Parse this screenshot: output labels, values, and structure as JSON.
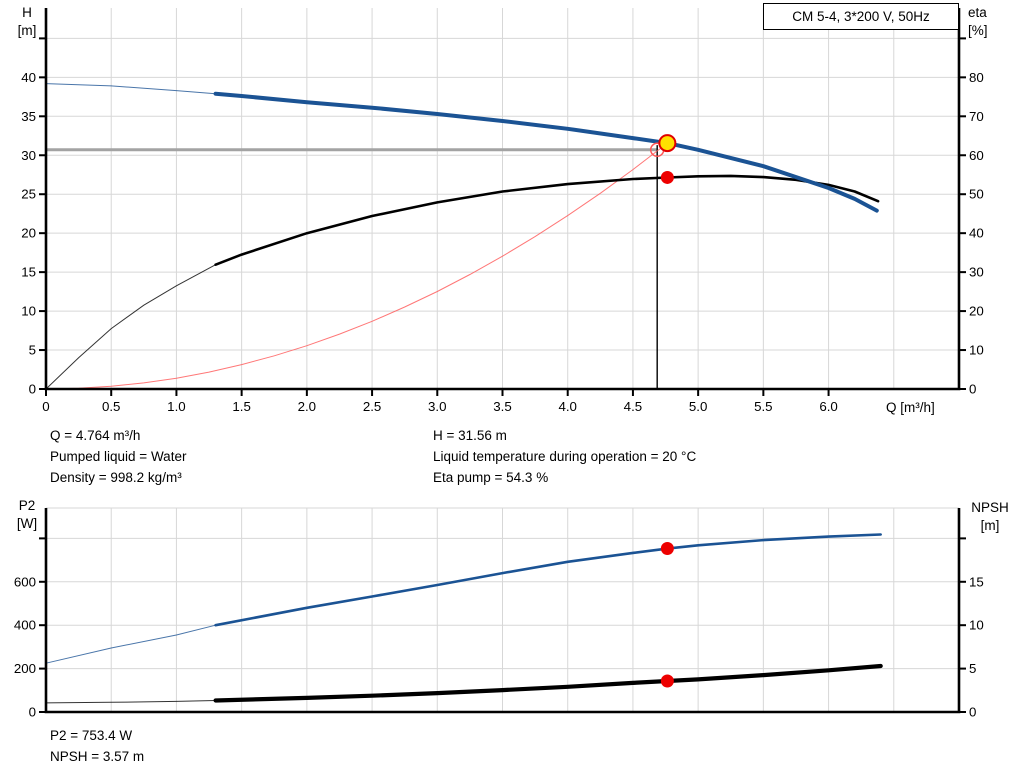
{
  "title_box": {
    "label": "CM 5-4, 3*200 V, 50Hz"
  },
  "colors": {
    "curve_blue": "#1B5394",
    "curve_black": "#000000",
    "curve_red": "#FF5555",
    "dot_red": "#ED0000",
    "dot_yellow": "#FFE000",
    "dot_yellow_ring": "#E00000",
    "grid": "#D7D7D7",
    "axis": "#000000",
    "duty_h_line": "#A3A3A3",
    "duty_v_line": "#000000"
  },
  "annotations": {
    "q": "Q = 4.764 m³/h",
    "pumped_liquid": "Pumped liquid = Water",
    "density": "Density = 998.2 kg/m³",
    "h": "H = 31.56 m",
    "temperature": "Liquid temperature during operation = 20 °C",
    "eta_pump": "Eta pump = 54.3 %",
    "p2": "P2 = 753.4 W",
    "npsh": "NPSH = 3.57 m"
  },
  "chart_data": [
    {
      "id": "head-chart",
      "type": "line",
      "x_axis": {
        "label": "Q [m³/h]",
        "min": 0,
        "max": 7,
        "tick_step": 0.5,
        "labeled_max": 6,
        "grid_max": 6.5
      },
      "left_axis": {
        "label": "H",
        "unit": "[m]",
        "min": 0,
        "max": 48.9,
        "ticks": [
          0,
          5,
          10,
          15,
          20,
          25,
          30,
          35,
          40
        ],
        "unlabeled_ticks": [
          45
        ]
      },
      "right_axis": {
        "label": "eta",
        "unit": "[%]",
        "min": 0,
        "max": 97.8,
        "ticks": [
          0,
          10,
          20,
          30,
          40,
          50,
          60,
          70,
          80
        ],
        "unlabeled_ticks": [
          90
        ]
      },
      "duty_lines": {
        "vertical": {
          "q": 4.686,
          "from_value": 0,
          "to_value": 31.3,
          "axis": "left"
        },
        "horizontal": {
          "value": 30.7,
          "from_q": 0,
          "to_q": 4.686,
          "axis": "left"
        }
      },
      "series": [
        {
          "name": "system-curve",
          "axis": "left",
          "color": "#FF5555",
          "thin_until": 99,
          "width": 1.2,
          "points": [
            [
              0,
              0
            ],
            [
              0.25,
              0.09
            ],
            [
              0.5,
              0.35
            ],
            [
              0.75,
              0.78
            ],
            [
              1,
              1.39
            ],
            [
              1.25,
              2.17
            ],
            [
              1.5,
              3.13
            ],
            [
              1.75,
              4.26
            ],
            [
              2,
              5.56
            ],
            [
              2.25,
              7.04
            ],
            [
              2.5,
              8.69
            ],
            [
              2.75,
              10.52
            ],
            [
              3,
              12.52
            ],
            [
              3.25,
              14.69
            ],
            [
              3.5,
              17.04
            ],
            [
              3.75,
              19.56
            ],
            [
              4,
              22.25
            ],
            [
              4.25,
              25.12
            ],
            [
              4.5,
              28.16
            ],
            [
              4.764,
              31.56
            ]
          ]
        },
        {
          "name": "efficiency-curve",
          "axis": "right",
          "color": "#000000",
          "thin_until": 1.3,
          "width": 2.6,
          "points": [
            [
              0,
              0
            ],
            [
              0.25,
              8
            ],
            [
              0.5,
              15.5
            ],
            [
              0.75,
              21.5
            ],
            [
              1,
              26.5
            ],
            [
              1.3,
              31.9
            ],
            [
              1.5,
              34.5
            ],
            [
              2,
              40
            ],
            [
              2.5,
              44.4
            ],
            [
              3,
              47.9
            ],
            [
              3.5,
              50.7
            ],
            [
              4,
              52.6
            ],
            [
              4.5,
              53.9
            ],
            [
              4.764,
              54.3
            ],
            [
              5,
              54.6
            ],
            [
              5.25,
              54.7
            ],
            [
              5.5,
              54.4
            ],
            [
              5.75,
              53.7
            ],
            [
              6,
              52.4
            ],
            [
              6.2,
              50.7
            ],
            [
              6.38,
              48.2
            ]
          ]
        },
        {
          "name": "pump-head-curve",
          "axis": "left",
          "color": "#1B5394",
          "thin_until": 1.3,
          "width": 4,
          "points": [
            [
              0,
              39.2
            ],
            [
              0.5,
              38.9
            ],
            [
              1,
              38.3
            ],
            [
              1.3,
              37.9
            ],
            [
              1.5,
              37.6
            ],
            [
              2,
              36.8
            ],
            [
              2.5,
              36.1
            ],
            [
              3,
              35.3
            ],
            [
              3.5,
              34.4
            ],
            [
              4,
              33.4
            ],
            [
              4.5,
              32.2
            ],
            [
              4.764,
              31.56
            ],
            [
              5,
              30.7
            ],
            [
              5.5,
              28.6
            ],
            [
              6,
              25.8
            ],
            [
              6.2,
              24.4
            ],
            [
              6.37,
              22.9
            ]
          ]
        }
      ],
      "markers": [
        {
          "name": "requested-point-ring",
          "q": 4.686,
          "value": 30.7,
          "axis": "left",
          "r": 6.5,
          "fill": "none",
          "stroke": "#FF5555",
          "stroke_width": 1.5
        },
        {
          "name": "duty-point-marker",
          "q": 4.764,
          "value": 31.56,
          "axis": "left",
          "r": 8,
          "fill": "#FFE000",
          "stroke": "#E00000",
          "stroke_width": 2
        },
        {
          "name": "eta-point-marker",
          "q": 4.764,
          "value": 54.3,
          "axis": "right",
          "r": 6.5,
          "fill": "#ED0000",
          "stroke": "none",
          "stroke_width": 0
        }
      ]
    },
    {
      "id": "power-npsh-chart",
      "type": "line",
      "x_axis": {
        "label": "",
        "min": 0,
        "max": 7,
        "tick_step": 0.5,
        "labeled_max": -1,
        "grid_max": 6.5
      },
      "left_axis": {
        "label": "P2",
        "unit": "[W]",
        "min": 0,
        "max": 940,
        "ticks": [
          0,
          200,
          400,
          600
        ],
        "unlabeled_ticks": [
          800
        ]
      },
      "right_axis": {
        "label": "NPSH",
        "unit": "[m]",
        "min": 0,
        "max": 23.5,
        "ticks": [
          0,
          5,
          10,
          15
        ],
        "unlabeled_ticks": [
          20
        ]
      },
      "series": [
        {
          "name": "power-curve",
          "axis": "left",
          "color": "#1B5394",
          "thin_until": 1.3,
          "width": 2.6,
          "points": [
            [
              0,
              225
            ],
            [
              0.5,
              295
            ],
            [
              1,
              355
            ],
            [
              1.3,
              400
            ],
            [
              2,
              480
            ],
            [
              2.5,
              532
            ],
            [
              3,
              585
            ],
            [
              3.5,
              640
            ],
            [
              4,
              692
            ],
            [
              4.5,
              733
            ],
            [
              4.764,
              753
            ],
            [
              5,
              768
            ],
            [
              5.5,
              792
            ],
            [
              6,
              808
            ],
            [
              6.4,
              818
            ]
          ]
        },
        {
          "name": "npsh-curve",
          "axis": "right",
          "color": "#000000",
          "thin_until": 1.3,
          "width": 4.2,
          "points": [
            [
              0,
              1.05
            ],
            [
              0.5,
              1.12
            ],
            [
              1,
              1.22
            ],
            [
              1.3,
              1.33
            ],
            [
              2,
              1.63
            ],
            [
              2.5,
              1.88
            ],
            [
              3,
              2.18
            ],
            [
              3.5,
              2.52
            ],
            [
              4,
              2.9
            ],
            [
              4.5,
              3.35
            ],
            [
              4.764,
              3.57
            ],
            [
              5,
              3.75
            ],
            [
              5.5,
              4.25
            ],
            [
              6,
              4.8
            ],
            [
              6.4,
              5.3
            ]
          ]
        }
      ],
      "markers": [
        {
          "name": "p2-point-marker",
          "q": 4.764,
          "value": 753.4,
          "axis": "left",
          "r": 6.5,
          "fill": "#ED0000",
          "stroke": "none",
          "stroke_width": 0
        },
        {
          "name": "npsh-point-marker",
          "q": 4.764,
          "value": 3.57,
          "axis": "right",
          "r": 6.5,
          "fill": "#ED0000",
          "stroke": "none",
          "stroke_width": 0
        }
      ]
    }
  ]
}
